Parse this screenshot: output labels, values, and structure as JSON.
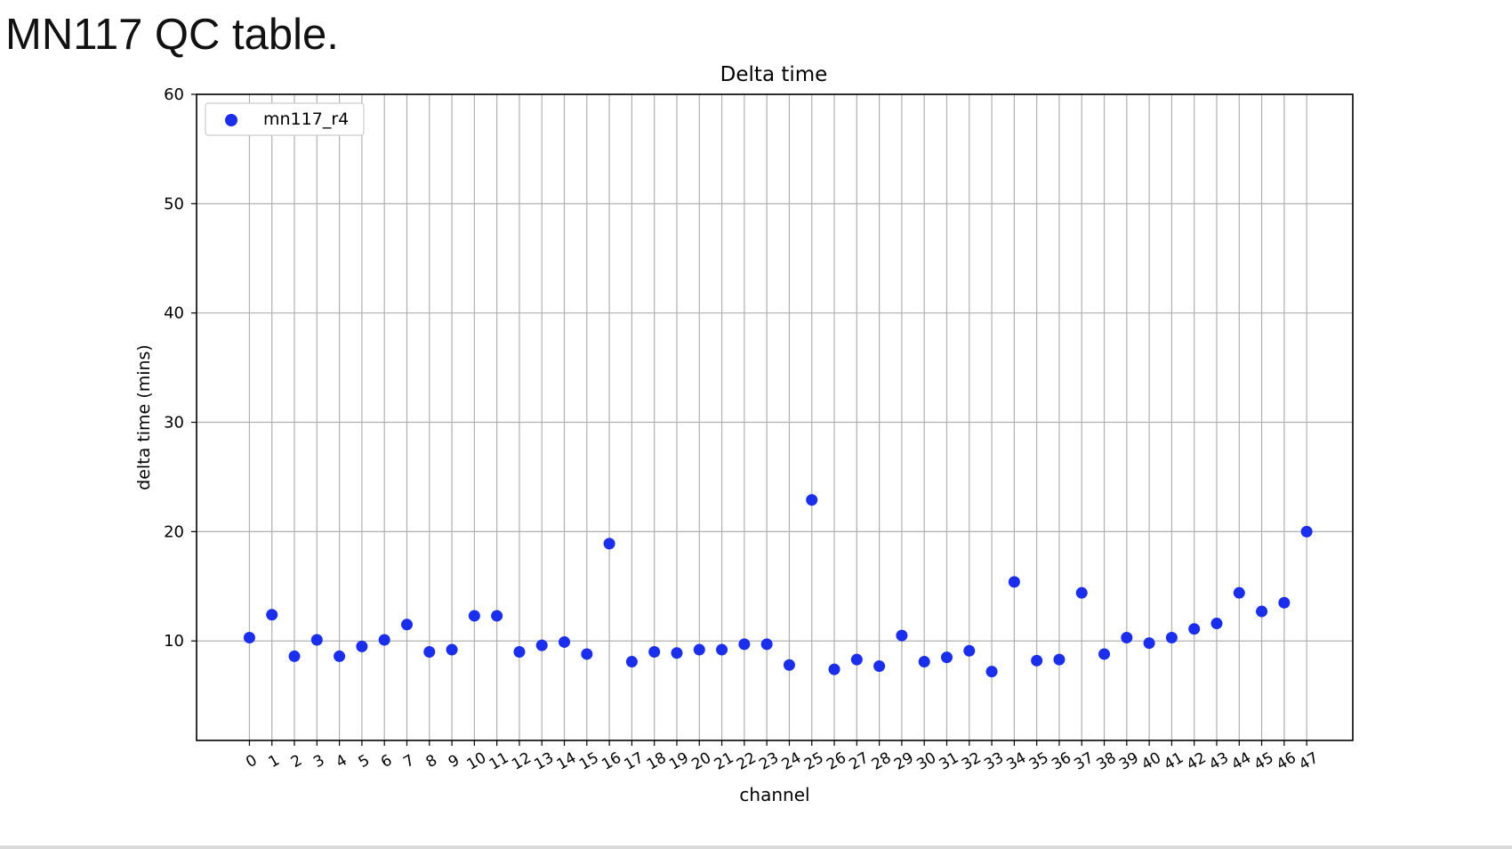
{
  "slide": {
    "title": "MN117 QC table."
  },
  "colors": {
    "series": "#1a2ef0",
    "grid": "#b0b0b0",
    "axis": "#000000"
  },
  "chart_data": {
    "type": "scatter",
    "title": "Delta time",
    "xlabel": "channel",
    "ylabel": "delta time (mins)",
    "x": [
      0,
      1,
      2,
      3,
      4,
      5,
      6,
      7,
      8,
      9,
      10,
      11,
      12,
      13,
      14,
      15,
      16,
      17,
      18,
      19,
      20,
      21,
      22,
      23,
      24,
      25,
      26,
      27,
      28,
      29,
      30,
      31,
      32,
      33,
      34,
      35,
      36,
      37,
      38,
      39,
      40,
      41,
      42,
      43,
      44,
      45,
      46,
      47
    ],
    "xticks": [
      "0",
      "1",
      "2",
      "3",
      "4",
      "5",
      "6",
      "7",
      "8",
      "9",
      "10",
      "11",
      "12",
      "13",
      "14",
      "15",
      "16",
      "17",
      "18",
      "19",
      "20",
      "21",
      "22",
      "23",
      "24",
      "25",
      "26",
      "27",
      "28",
      "29",
      "30",
      "31",
      "32",
      "33",
      "34",
      "35",
      "36",
      "37",
      "38",
      "39",
      "40",
      "41",
      "42",
      "43",
      "44",
      "45",
      "46",
      "47"
    ],
    "yticks": [
      10,
      20,
      30,
      40,
      50,
      60
    ],
    "ylim": [
      0.9,
      60
    ],
    "xlim": [
      -2.35,
      49.05
    ],
    "grid": true,
    "legend_position": "upper left",
    "series": [
      {
        "name": "mn117_r4",
        "values": [
          10.3,
          12.4,
          8.6,
          10.1,
          8.6,
          9.5,
          10.1,
          11.5,
          9.0,
          9.2,
          12.3,
          12.3,
          9.0,
          9.6,
          9.9,
          8.8,
          18.9,
          8.1,
          9.0,
          8.9,
          9.2,
          9.2,
          9.7,
          9.7,
          7.8,
          22.9,
          7.4,
          8.3,
          7.7,
          10.5,
          8.1,
          8.5,
          9.1,
          7.2,
          15.4,
          8.2,
          8.3,
          14.4,
          8.8,
          10.3,
          9.8,
          10.3,
          11.1,
          11.6,
          14.4,
          12.7,
          13.5,
          20.0
        ]
      }
    ]
  }
}
